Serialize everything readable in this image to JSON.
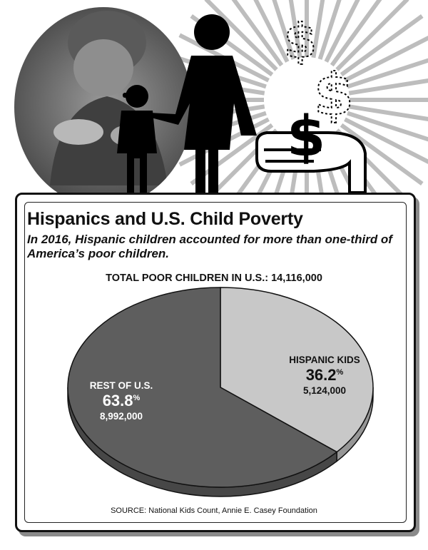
{
  "chart_data": {
    "type": "pie",
    "title": "Hispanics and U.S. Child Poverty",
    "subtitle": "In 2016, Hispanic children accounted for more than one-third of America’s poor children.",
    "total_label": "TOTAL POOR CHILDREN IN U.S.: 14,116,000",
    "slices": [
      {
        "label": "HISPANIC KIDS",
        "value": 36.2,
        "value_label": "36.2",
        "unit": "%",
        "count_label": "5,124,000",
        "color": "#c8c8c8"
      },
      {
        "label": "REST OF U.S.",
        "value": 63.8,
        "value_label": "63.8",
        "unit": "%",
        "count_label": "8,992,000",
        "color": "#5e5e5e"
      }
    ],
    "source": "SOURCE: National Kids Count, Annie E. Casey Foundation"
  },
  "illustration": {
    "icons": [
      "photo-of-child",
      "sunburst",
      "child-silhouette-icon",
      "woman-silhouette-icon",
      "dollar-icon",
      "hand-icon"
    ],
    "dollar_glyph": "$"
  }
}
